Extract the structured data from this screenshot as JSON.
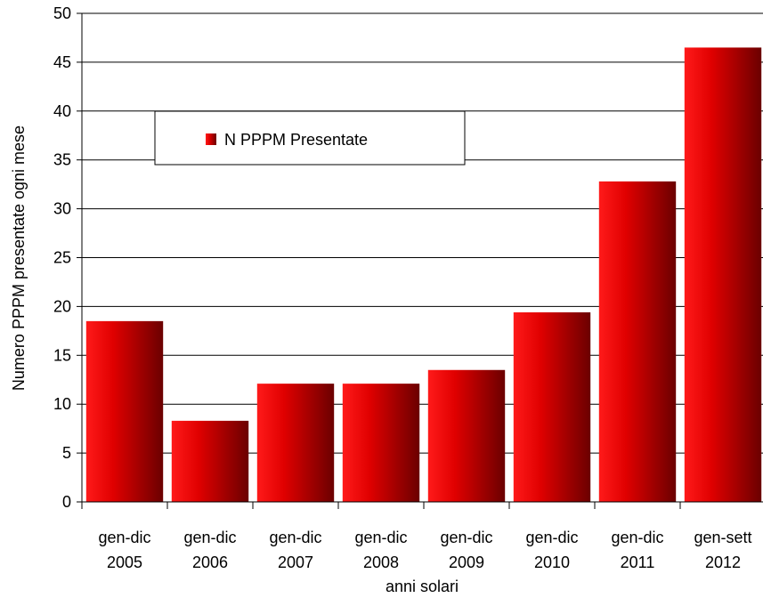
{
  "chart_data": {
    "type": "bar",
    "title": "",
    "xlabel": "anni solari",
    "ylabel": "Numero PPPM presentate ogni mese",
    "ylim": [
      0,
      50
    ],
    "yticks": [
      0,
      5,
      10,
      15,
      20,
      25,
      30,
      35,
      40,
      45,
      50
    ],
    "categories": [
      [
        "gen-dic",
        "2005"
      ],
      [
        "gen-dic",
        "2006"
      ],
      [
        "gen-dic",
        "2007"
      ],
      [
        "gen-dic",
        "2008"
      ],
      [
        "gen-dic",
        "2009"
      ],
      [
        "gen-dic",
        "2010"
      ],
      [
        "gen-dic",
        "2011"
      ],
      [
        "gen-sett",
        "2012"
      ]
    ],
    "series": [
      {
        "name": "N PPPM Presentate",
        "values": [
          18.5,
          8.3,
          12.1,
          12.1,
          13.5,
          19.4,
          32.8,
          46.5
        ]
      }
    ],
    "grid": true,
    "legend": "top-left inside plot",
    "colors": {
      "bar_light": "#ff1a1a",
      "bar_mid": "#e00000",
      "bar_dark": "#6b0000"
    }
  }
}
